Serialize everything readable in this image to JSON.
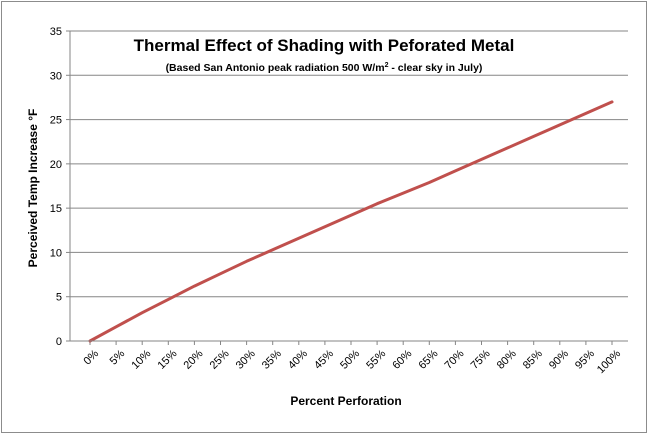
{
  "chart_data": {
    "type": "line",
    "title": "Thermal Effect of Shading with Peforated Metal",
    "subtitle": {
      "prefix": "(Based San Antonio peak radiation 500 W/m",
      "superscript": "2",
      "suffix": " - clear sky in July)"
    },
    "xlabel": "Percent Perforation",
    "ylabel": "Perceived Temp Increase °F",
    "categories": [
      "0%",
      "5%",
      "10%",
      "15%",
      "20%",
      "25%",
      "30%",
      "35%",
      "40%",
      "45%",
      "50%",
      "55%",
      "60%",
      "65%",
      "70%",
      "75%",
      "80%",
      "85%",
      "90%",
      "95%",
      "100%"
    ],
    "series": [
      {
        "color": "#c0504d",
        "values": [
          0,
          1.6,
          3.2,
          4.7,
          6.2,
          7.6,
          9.0,
          10.3,
          11.6,
          12.9,
          14.2,
          15.5,
          16.7,
          17.9,
          19.2,
          20.5,
          21.8,
          23.1,
          24.4,
          25.7,
          27.0
        ]
      }
    ],
    "ylim": [
      0,
      35
    ],
    "yticks": [
      0,
      5,
      10,
      15,
      20,
      25,
      30,
      35
    ],
    "grid": true,
    "legend": "none"
  }
}
